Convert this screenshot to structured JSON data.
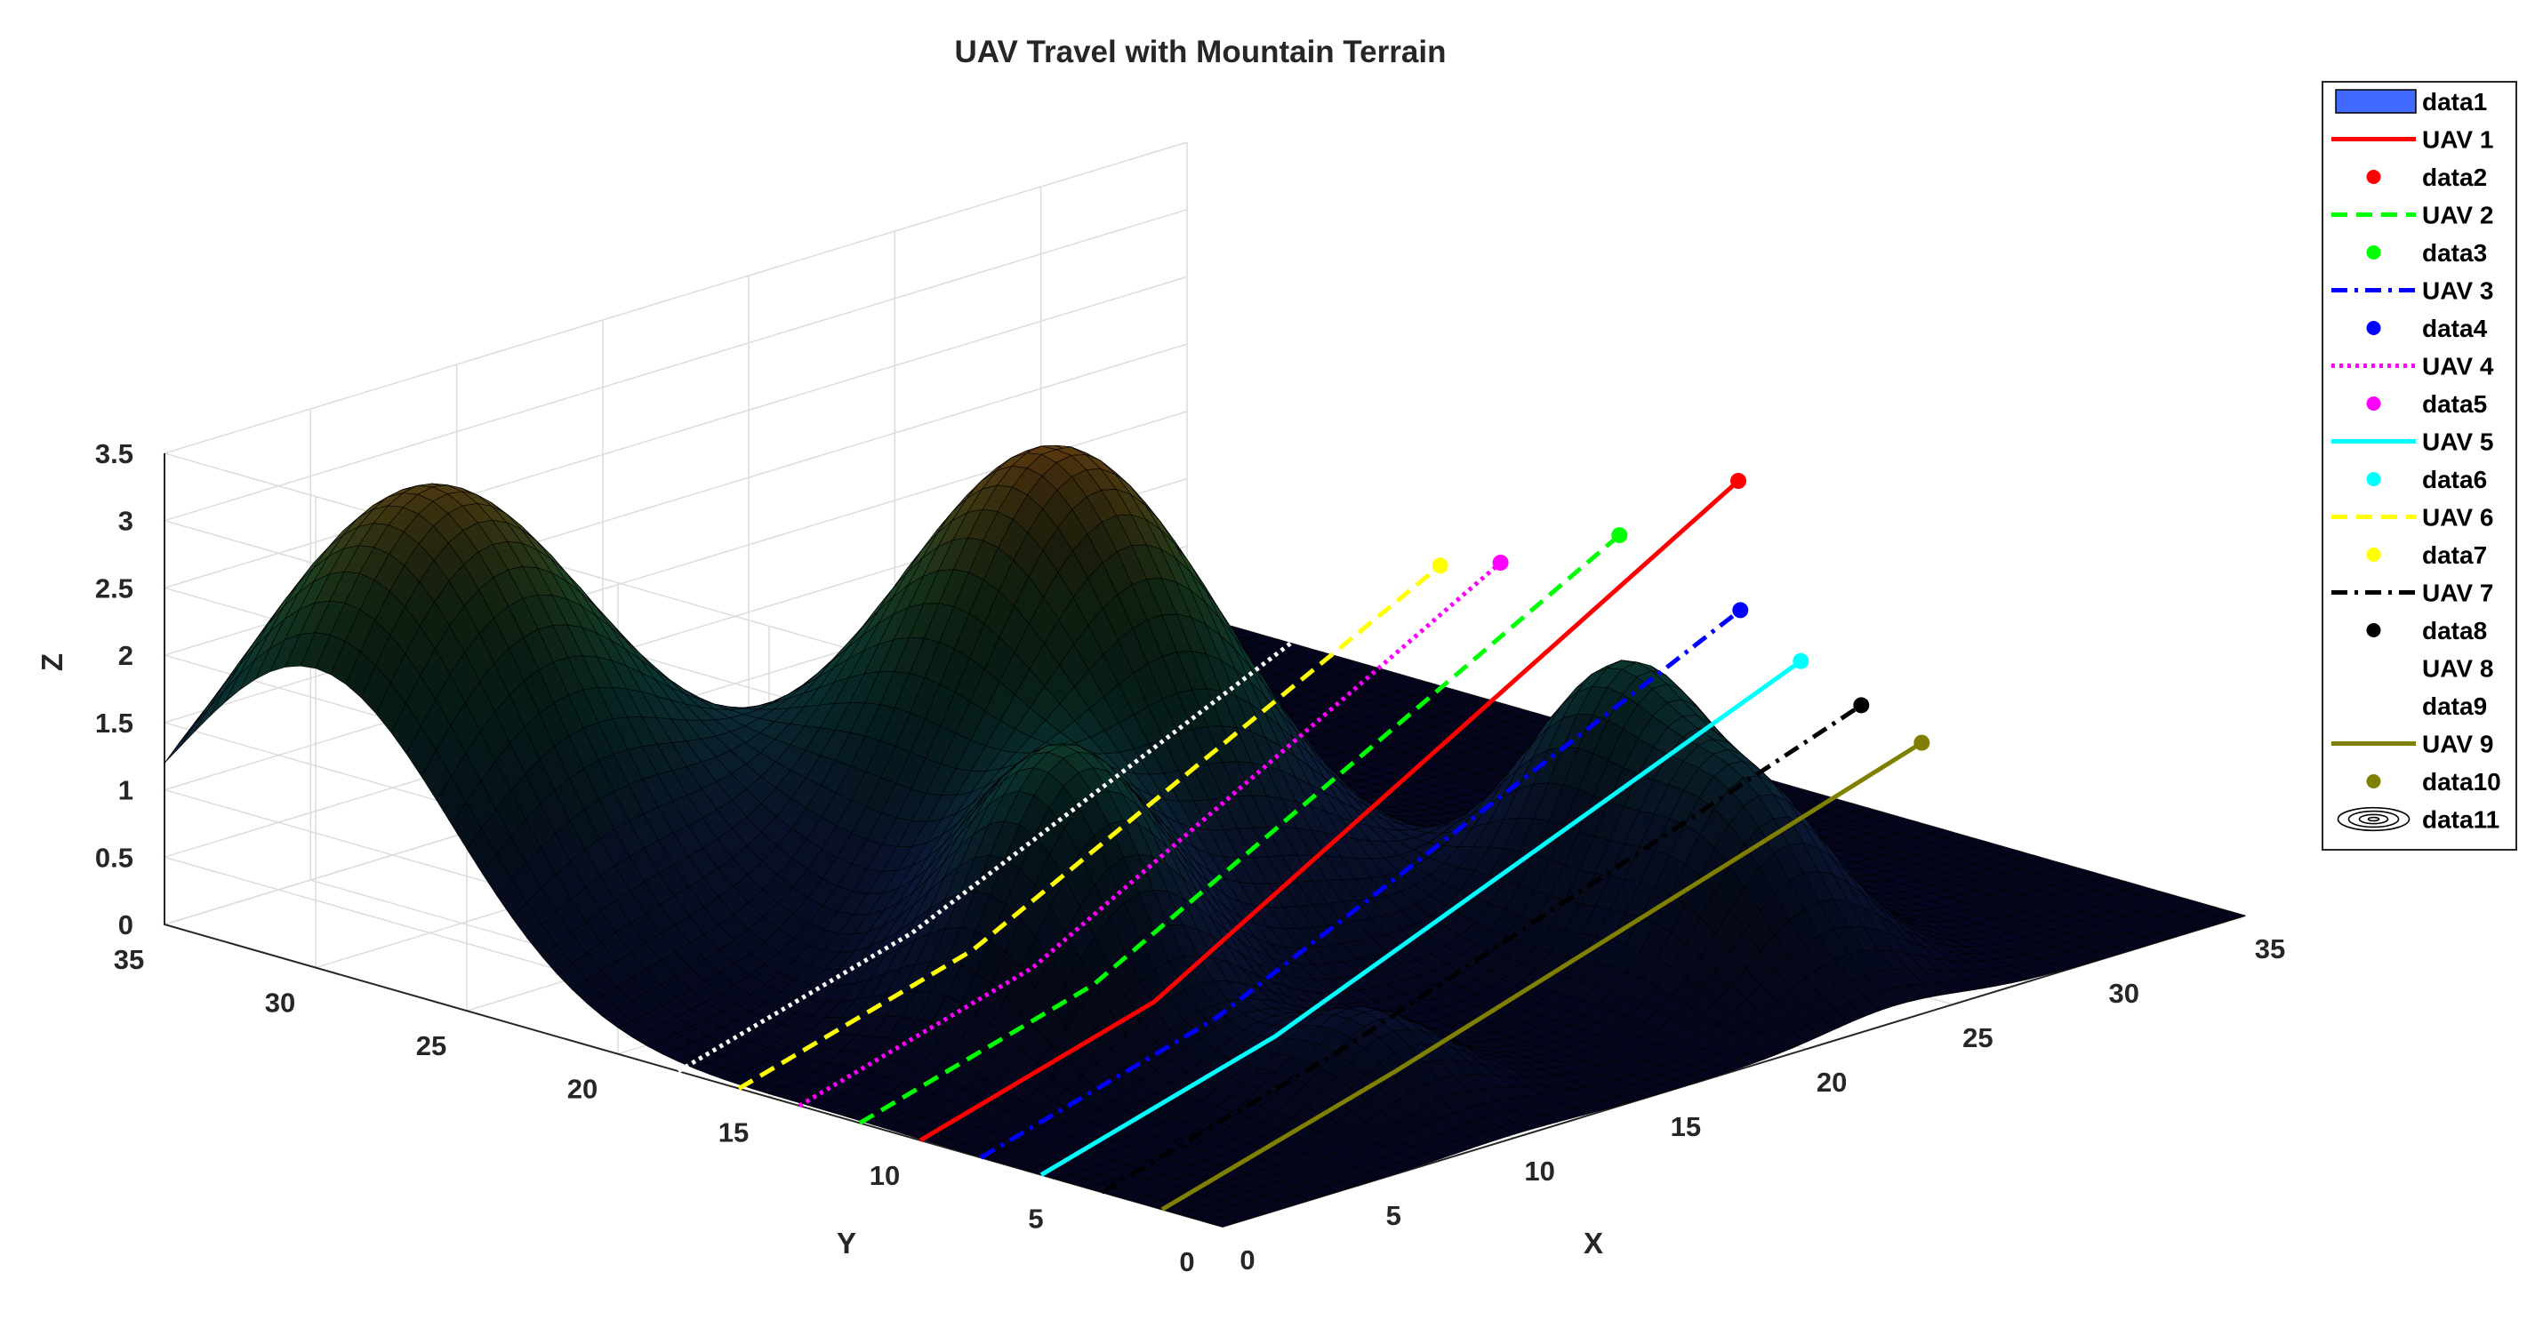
{
  "chart_data": {
    "type": "surface3d",
    "title": "UAV Travel with Mountain Terrain",
    "xlabel": "X",
    "ylabel": "Y",
    "zlabel": "Z",
    "xlim": [
      0,
      35
    ],
    "ylim": [
      0,
      35
    ],
    "zlim": [
      0,
      3.5
    ],
    "x_ticks": [
      "0",
      "5",
      "10",
      "15",
      "20",
      "25",
      "30",
      "35"
    ],
    "y_ticks": [
      "0",
      "5",
      "10",
      "15",
      "20",
      "25",
      "30",
      "35"
    ],
    "z_ticks": [
      "0",
      "0.5",
      "1",
      "1.5",
      "2",
      "2.5",
      "3",
      "3.5"
    ],
    "grid": true,
    "legend_position": "outside-top-right",
    "terrain_peaks": [
      {
        "x": 4,
        "y": 30,
        "height": 3.3,
        "width": 4.5
      },
      {
        "x": 15,
        "y": 20,
        "height": 3.5,
        "width": 4.2
      },
      {
        "x": 8,
        "y": 13,
        "height": 1.9,
        "width": 2.6
      },
      {
        "x": 24,
        "y": 10,
        "height": 1.85,
        "width": 2.4
      },
      {
        "x": 23,
        "y": 5,
        "height": 1.3,
        "width": 2.3
      },
      {
        "x": 10,
        "y": 5,
        "height": 0.6,
        "width": 2.0
      }
    ],
    "series": [
      {
        "name": "UAV 1",
        "legend": "UAV 1",
        "marker_legend": "data2",
        "color": "#ff0000",
        "dash": "solid",
        "path": [
          [
            0,
            10,
            0
          ],
          [
            8,
            10,
            0.5
          ],
          [
            28,
            10,
            3.05
          ]
        ]
      },
      {
        "name": "UAV 2",
        "legend": "UAV 2",
        "marker_legend": "data3",
        "color": "#00ff00",
        "dash": "dashed",
        "path": [
          [
            0,
            12,
            0
          ],
          [
            8,
            12,
            0.5
          ],
          [
            26,
            12,
            2.65
          ]
        ]
      },
      {
        "name": "UAV 3",
        "legend": "UAV 3",
        "marker_legend": "data4",
        "color": "#0000ff",
        "dash": "dashdot",
        "path": [
          [
            0,
            8,
            0
          ],
          [
            8,
            8,
            0.5
          ],
          [
            26,
            8,
            2.35
          ]
        ]
      },
      {
        "name": "UAV 4",
        "legend": "UAV 4",
        "marker_legend": "data5",
        "color": "#ff00ff",
        "dash": "dotted",
        "path": [
          [
            0,
            14,
            0
          ],
          [
            8,
            14,
            0.5
          ],
          [
            24,
            14,
            2.45
          ]
        ]
      },
      {
        "name": "UAV 5",
        "legend": "UAV 5",
        "marker_legend": "data6",
        "color": "#00ffff",
        "dash": "solid",
        "path": [
          [
            0,
            6,
            0
          ],
          [
            8,
            6,
            0.5
          ],
          [
            26,
            6,
            2.1
          ]
        ]
      },
      {
        "name": "UAV 6",
        "legend": "UAV 6",
        "marker_legend": "data7",
        "color": "#ffff00",
        "dash": "dashed",
        "path": [
          [
            0,
            16,
            0
          ],
          [
            8,
            16,
            0.5
          ],
          [
            24,
            16,
            2.3
          ]
        ]
      },
      {
        "name": "UAV 7",
        "legend": "UAV 7",
        "marker_legend": "data8",
        "color": "#000000",
        "dash": "dashdot",
        "path": [
          [
            0,
            4,
            0
          ],
          [
            8,
            4,
            0.5
          ],
          [
            26,
            4,
            1.9
          ]
        ]
      },
      {
        "name": "UAV 8",
        "legend": "UAV 8",
        "marker_legend": "data9",
        "color": "#ffffff",
        "dash": "dotted",
        "path": [
          [
            0,
            18,
            0
          ],
          [
            8,
            18,
            0.5
          ],
          [
            24,
            18,
            2.1
          ]
        ]
      },
      {
        "name": "UAV 9",
        "legend": "UAV 9",
        "marker_legend": "data10",
        "color": "#808000",
        "dash": "solid",
        "path": [
          [
            0,
            2,
            0
          ],
          [
            8,
            2,
            0.5
          ],
          [
            26,
            2,
            1.75
          ]
        ]
      }
    ],
    "legend": [
      {
        "label": "data1",
        "kind": "patch",
        "color": "#4169ff"
      },
      {
        "label": "UAV 1",
        "kind": "line",
        "color": "#ff0000",
        "dash": "solid"
      },
      {
        "label": "data2",
        "kind": "dot",
        "color": "#ff0000"
      },
      {
        "label": "UAV 2",
        "kind": "line",
        "color": "#00ff00",
        "dash": "dashed"
      },
      {
        "label": "data3",
        "kind": "dot",
        "color": "#00ff00"
      },
      {
        "label": "UAV 3",
        "kind": "line",
        "color": "#0000ff",
        "dash": "dashdot"
      },
      {
        "label": "data4",
        "kind": "dot",
        "color": "#0000ff"
      },
      {
        "label": "UAV 4",
        "kind": "line",
        "color": "#ff00ff",
        "dash": "dotted"
      },
      {
        "label": "data5",
        "kind": "dot",
        "color": "#ff00ff"
      },
      {
        "label": "UAV 5",
        "kind": "line",
        "color": "#00ffff",
        "dash": "solid"
      },
      {
        "label": "data6",
        "kind": "dot",
        "color": "#00ffff"
      },
      {
        "label": "UAV 6",
        "kind": "line",
        "color": "#ffff00",
        "dash": "dashed"
      },
      {
        "label": "data7",
        "kind": "dot",
        "color": "#ffff00"
      },
      {
        "label": "UAV 7",
        "kind": "line",
        "color": "#000000",
        "dash": "dashdot"
      },
      {
        "label": "data8",
        "kind": "dot",
        "color": "#000000"
      },
      {
        "label": "UAV 8",
        "kind": "line",
        "color": "#ffffff",
        "dash": "dotted"
      },
      {
        "label": "data9",
        "kind": "dot",
        "color": "#ffffff"
      },
      {
        "label": "UAV 9",
        "kind": "line",
        "color": "#808000",
        "dash": "solid"
      },
      {
        "label": "data10",
        "kind": "dot",
        "color": "#808000"
      },
      {
        "label": "data11",
        "kind": "contour",
        "color": "#000000"
      }
    ]
  }
}
